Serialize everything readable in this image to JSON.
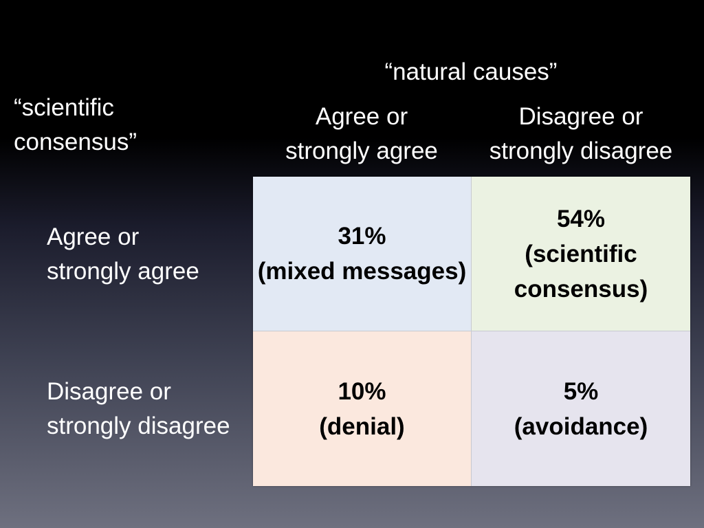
{
  "column_header": {
    "title": "“natural causes”",
    "col1_line1": "Agree or",
    "col1_line2": "strongly agree",
    "col2_line1": "Disagree or",
    "col2_line2": "strongly disagree"
  },
  "row_header": {
    "title_line1": "“scientific",
    "title_line2": "consensus”",
    "row1_line1": "Agree or",
    "row1_line2": "strongly agree",
    "row2_line1": "Disagree or",
    "row2_line2": "strongly disagree"
  },
  "cells": {
    "agree_agree": {
      "percent": "31%",
      "label_line1": "(mixed messages)"
    },
    "agree_disagree": {
      "percent": "54%",
      "label_line1": "(scientific",
      "label_line2": "consensus)"
    },
    "disagree_agree": {
      "percent": "10%",
      "label_line1": "(denial)"
    },
    "disagree_disagree": {
      "percent": "5%",
      "label_line1": "(avoidance)"
    }
  },
  "colors": {
    "mixed_messages_bg": "#e2e9f4",
    "scientific_consensus_bg": "#ebf2e2",
    "denial_bg": "#fbe8de",
    "avoidance_bg": "#e6e4ee"
  },
  "chart_data": {
    "type": "table",
    "columns_label": "“natural causes”",
    "rows_label": "“scientific consensus”",
    "columns": [
      "Agree or strongly agree",
      "Disagree or strongly disagree"
    ],
    "rows": [
      "Agree or strongly agree",
      "Disagree or strongly disagree"
    ],
    "values": [
      [
        31,
        54
      ],
      [
        10,
        5
      ]
    ],
    "unit": "%",
    "cell_labels": [
      [
        "mixed messages",
        "scientific consensus"
      ],
      [
        "denial",
        "avoidance"
      ]
    ]
  }
}
